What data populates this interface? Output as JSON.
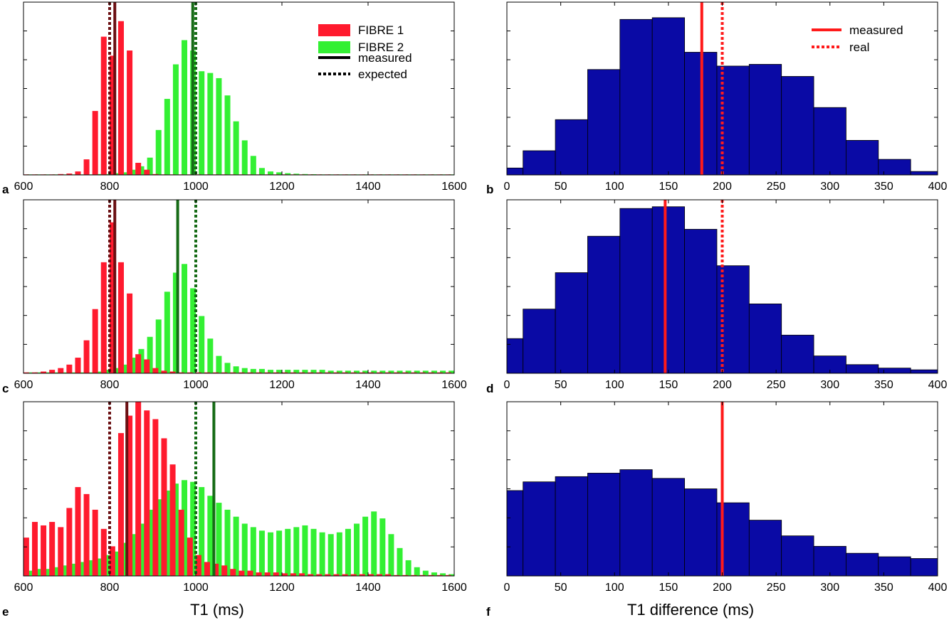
{
  "colors": {
    "fibre1": "#ff1a2e",
    "fibre2": "#33f033",
    "fibre1_line": "#6b0f12",
    "fibre2_line": "#166b16",
    "hist": "#0a0aa5",
    "diff_line": "#ff1a1a"
  },
  "chart_data": [
    {
      "panel": "a",
      "type": "bar",
      "xlim": [
        600,
        1600
      ],
      "xticks": [
        "600",
        "800",
        "1000",
        "1200",
        "1400",
        "1600"
      ],
      "bin_width": 20,
      "bin_centers": [
        610,
        630,
        650,
        670,
        690,
        710,
        730,
        750,
        770,
        790,
        810,
        830,
        850,
        870,
        890,
        910,
        930,
        950,
        970,
        990,
        1010,
        1030,
        1050,
        1070,
        1090,
        1110,
        1130,
        1150,
        1170,
        1190,
        1210,
        1230,
        1250,
        1270,
        1290,
        1310,
        1330,
        1350,
        1370,
        1390,
        1410,
        1430,
        1450,
        1470,
        1490,
        1510,
        1530,
        1550,
        1570,
        1590
      ],
      "series": [
        {
          "name": "FIBRE 1",
          "values": [
            0.3,
            0.3,
            0.3,
            0.3,
            0.5,
            0.8,
            2,
            9,
            37,
            80,
            69,
            89,
            72,
            7,
            3,
            0.5,
            0.3,
            0.3,
            0.3,
            0.3,
            0.3,
            0.3,
            0.3,
            0.3,
            0.3,
            0.3,
            0.3,
            0.3,
            0.3,
            0.3,
            0.3,
            0.3,
            0.3,
            0.3,
            0.3,
            0.3,
            0.3,
            0.3,
            0.3,
            0.3,
            0.3,
            0.3,
            0.3,
            0.3,
            0.3,
            0.3,
            0.3,
            0.3,
            0.3,
            0.3
          ]
        },
        {
          "name": "FIBRE 2",
          "values": [
            0.3,
            0.3,
            0.3,
            0.3,
            0.3,
            0.3,
            0.3,
            0.3,
            0.5,
            0.5,
            1,
            1.5,
            3,
            5,
            10,
            26,
            44,
            64,
            78,
            72,
            60,
            59,
            56,
            46,
            31,
            20,
            11,
            4,
            2,
            1.5,
            1,
            0.7,
            0.5,
            0.4,
            0.3,
            0.3,
            0.3,
            0.3,
            0.3,
            0.3,
            0.3,
            0.3,
            0.3,
            0.3,
            0.3,
            0.3,
            0.3,
            0.3,
            0.3,
            0.3
          ]
        }
      ],
      "lines": [
        {
          "series": "FIBRE 1",
          "kind": "measured",
          "x": 812
        },
        {
          "series": "FIBRE 1",
          "kind": "expected",
          "x": 800
        },
        {
          "series": "FIBRE 2",
          "kind": "measured",
          "x": 993
        },
        {
          "series": "FIBRE 2",
          "kind": "expected",
          "x": 1000
        }
      ],
      "ylim": [
        0,
        100
      ],
      "legend": {
        "position": "top-right",
        "entries": [
          "FIBRE 1",
          "FIBRE 2",
          "measured",
          "expected"
        ]
      }
    },
    {
      "panel": "b",
      "type": "bar",
      "xlim": [
        0,
        400
      ],
      "xticks": [
        "0",
        "50",
        "100",
        "150",
        "200",
        "250",
        "300",
        "350",
        "400"
      ],
      "bin_edges": [
        -15,
        15,
        45,
        75,
        105,
        135,
        165,
        195,
        225,
        255,
        285,
        315,
        345,
        375,
        405
      ],
      "values": [
        4,
        14,
        32,
        61,
        90,
        91,
        71,
        63,
        64,
        57,
        39,
        20,
        9,
        2
      ],
      "lines": [
        {
          "kind": "measured",
          "x": 181
        },
        {
          "kind": "real",
          "x": 200
        }
      ],
      "ylim": [
        0,
        100
      ],
      "legend": {
        "position": "top-right",
        "entries": [
          "measured",
          "real"
        ]
      }
    },
    {
      "panel": "c",
      "type": "bar",
      "xlim": [
        600,
        1600
      ],
      "xticks": [
        "600",
        "800",
        "1000",
        "1200",
        "1400",
        "1600"
      ],
      "bin_width": 20,
      "bin_centers": [
        610,
        630,
        650,
        670,
        690,
        710,
        730,
        750,
        770,
        790,
        810,
        830,
        850,
        870,
        890,
        910,
        930,
        950,
        970,
        990,
        1010,
        1030,
        1050,
        1070,
        1090,
        1110,
        1130,
        1150,
        1170,
        1190,
        1210,
        1230,
        1250,
        1270,
        1290,
        1310,
        1330,
        1350,
        1370,
        1390,
        1410,
        1430,
        1450,
        1470,
        1490,
        1510,
        1530,
        1550,
        1570,
        1590
      ],
      "series": [
        {
          "name": "FIBRE 1",
          "values": [
            0.5,
            0.5,
            1,
            2,
            3,
            5,
            9,
            19,
            37,
            64,
            87,
            64,
            46,
            11,
            8,
            3,
            1.5,
            1,
            0.5,
            0.5,
            0.5,
            0.5,
            0.5,
            0.5,
            0.5,
            0.5,
            0.5,
            0.5,
            0.5,
            0.5,
            0.5,
            0.5,
            0.5,
            0.5,
            0.5,
            0.5,
            0.5,
            0.5,
            0.5,
            0.5,
            0.5,
            0.5,
            0.5,
            0.5,
            0.5,
            0.5,
            0.5,
            0.5,
            0.5,
            0.5
          ]
        },
        {
          "name": "FIBRE 2",
          "values": [
            0.5,
            0.5,
            0.5,
            0.5,
            0.5,
            0.5,
            0.5,
            0.5,
            1,
            2,
            3,
            5,
            9,
            14,
            21,
            31,
            47,
            58,
            63,
            49,
            33,
            20,
            10,
            6,
            4,
            3,
            2.5,
            2.5,
            2,
            2,
            2,
            2,
            2,
            2,
            2,
            1.5,
            1.5,
            1.5,
            1.5,
            1.5,
            1.5,
            1.5,
            1.5,
            1.5,
            1.5,
            1.5,
            1.5,
            1.5,
            1.5,
            1.5
          ]
        }
      ],
      "lines": [
        {
          "series": "FIBRE 1",
          "kind": "measured",
          "x": 812
        },
        {
          "series": "FIBRE 1",
          "kind": "expected",
          "x": 800
        },
        {
          "series": "FIBRE 2",
          "kind": "measured",
          "x": 958
        },
        {
          "series": "FIBRE 2",
          "kind": "expected",
          "x": 1000
        }
      ],
      "ylim": [
        0,
        100
      ]
    },
    {
      "panel": "d",
      "type": "bar",
      "xlim": [
        0,
        400
      ],
      "xticks": [
        "0",
        "50",
        "100",
        "150",
        "200",
        "250",
        "300",
        "350",
        "400"
      ],
      "bin_edges": [
        -15,
        15,
        45,
        75,
        105,
        135,
        165,
        195,
        225,
        255,
        285,
        315,
        345,
        375,
        405
      ],
      "values": [
        20,
        37,
        58,
        79,
        95,
        96,
        83,
        62,
        40,
        22,
        10,
        5,
        3,
        2
      ],
      "lines": [
        {
          "kind": "measured",
          "x": 147
        },
        {
          "kind": "real",
          "x": 200
        }
      ],
      "ylim": [
        0,
        100
      ]
    },
    {
      "panel": "e",
      "type": "bar",
      "xlim": [
        600,
        1600
      ],
      "xticks": [
        "600",
        "800",
        "1000",
        "1200",
        "1400",
        "1600"
      ],
      "bin_width": 20,
      "bin_centers": [
        610,
        630,
        650,
        670,
        690,
        710,
        730,
        750,
        770,
        790,
        810,
        830,
        850,
        870,
        890,
        910,
        930,
        950,
        970,
        990,
        1010,
        1030,
        1050,
        1070,
        1090,
        1110,
        1130,
        1150,
        1170,
        1190,
        1210,
        1230,
        1250,
        1270,
        1290,
        1310,
        1330,
        1350,
        1370,
        1390,
        1410,
        1430,
        1450,
        1470,
        1490,
        1510,
        1530,
        1550,
        1570,
        1590
      ],
      "series": [
        {
          "name": "FIBRE 1",
          "values": [
            22,
            31,
            29,
            31,
            28,
            39,
            51,
            47,
            38,
            27,
            17,
            82,
            92,
            100,
            95,
            90,
            79,
            64,
            38,
            22,
            12,
            8,
            7,
            6,
            4,
            3,
            3,
            2,
            2,
            2,
            1.5,
            1.5,
            1.5,
            1,
            1,
            1,
            1,
            1,
            1,
            1,
            1,
            1,
            1,
            0.5,
            0.5,
            0.5,
            0.5,
            0.5,
            0.5,
            0.5
          ]
        },
        {
          "name": "FIBRE 2",
          "values": [
            3,
            4,
            4,
            5,
            6,
            7,
            8,
            9,
            10,
            12,
            14,
            19,
            24,
            30,
            38,
            44,
            49,
            53,
            55,
            54,
            51,
            46,
            42,
            38,
            34,
            30,
            28,
            26,
            25,
            26,
            27,
            28,
            29,
            27,
            25,
            24,
            25,
            27,
            30,
            34,
            37,
            33,
            24,
            16,
            9,
            5,
            3,
            2,
            1.5,
            1
          ]
        }
      ],
      "lines": [
        {
          "series": "FIBRE 1",
          "kind": "measured",
          "x": 840
        },
        {
          "series": "FIBRE 1",
          "kind": "expected",
          "x": 800
        },
        {
          "series": "FIBRE 2",
          "kind": "measured",
          "x": 1042
        },
        {
          "series": "FIBRE 2",
          "kind": "expected",
          "x": 1000
        }
      ],
      "ylim": [
        0,
        100
      ]
    },
    {
      "panel": "f",
      "type": "bar",
      "xlim": [
        0,
        400
      ],
      "xticks": [
        "0",
        "50",
        "100",
        "150",
        "200",
        "250",
        "300",
        "350",
        "400"
      ],
      "bin_edges": [
        -15,
        15,
        45,
        75,
        105,
        135,
        165,
        195,
        225,
        255,
        285,
        315,
        345,
        375,
        405
      ],
      "values": [
        49,
        54,
        57,
        59,
        61,
        56,
        50,
        42,
        32,
        23,
        17,
        13,
        11,
        10
      ],
      "lines": [
        {
          "kind": "measured",
          "x": 200
        },
        {
          "kind": "real",
          "x": 200
        }
      ],
      "ylim": [
        0,
        100
      ]
    }
  ],
  "axis_labels": {
    "left": "T1 (ms)",
    "right": "T1 difference (ms)"
  },
  "legends": {
    "left": {
      "fibre1": "FIBRE 1",
      "fibre2": "FIBRE 2",
      "measured": "measured",
      "expected": "expected"
    },
    "right": {
      "measured": "measured",
      "real": "real"
    }
  },
  "panel_labels": {
    "a": "a",
    "b": "b",
    "c": "c",
    "d": "d",
    "e": "e",
    "f": "f"
  }
}
